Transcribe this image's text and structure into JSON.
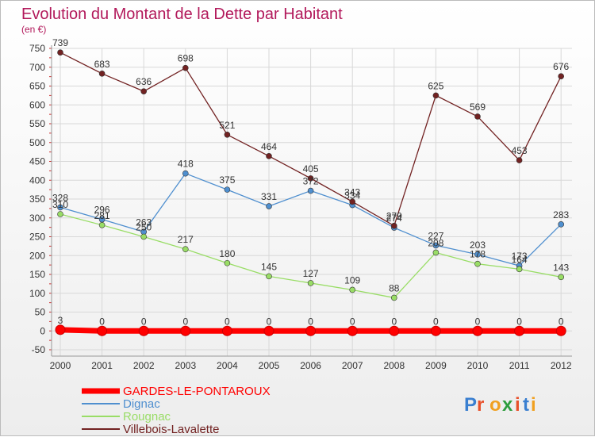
{
  "chart_data": {
    "type": "line",
    "title": "Evolution du Montant de la Dette par Habitant",
    "subtitle": "(en €)",
    "x": [
      "2000",
      "2001",
      "2002",
      "2003",
      "2004",
      "2005",
      "2006",
      "2007",
      "2008",
      "2009",
      "2010",
      "2011",
      "2012"
    ],
    "ylim": [
      -50,
      750
    ],
    "yticks": [
      -50,
      0,
      50,
      100,
      150,
      200,
      250,
      300,
      350,
      400,
      450,
      500,
      550,
      600,
      650,
      700,
      750
    ],
    "grid": true,
    "legend_position": "bottom-left",
    "series": [
      {
        "name": "GARDES-LE-PONTAROUX",
        "color": "#ff0000",
        "values": [
          3,
          0,
          0,
          0,
          0,
          0,
          0,
          0,
          0,
          0,
          0,
          0,
          0
        ]
      },
      {
        "name": "Dignac",
        "color": "#4f8fcf",
        "values": [
          328,
          296,
          263,
          418,
          375,
          331,
          372,
          334,
          274,
          227,
          203,
          173,
          283
        ]
      },
      {
        "name": "Rougnac",
        "color": "#99dd66",
        "values": [
          310,
          281,
          250,
          217,
          180,
          145,
          127,
          109,
          88,
          208,
          178,
          164,
          143
        ]
      },
      {
        "name": "Villebois-Lavalette",
        "color": "#722222",
        "values": [
          739,
          683,
          636,
          698,
          521,
          464,
          405,
          343,
          279,
          625,
          569,
          453,
          676
        ]
      }
    ]
  },
  "logo": {
    "text": "Proxiti",
    "letters": [
      "P",
      "r",
      "o",
      "x",
      "i",
      "t",
      "i"
    ],
    "colors": [
      "#3a7fd0",
      "#e8502a",
      "#f0a020",
      "#2e9e3e",
      "#e8502a",
      "#3a7fd0",
      "#f0a020"
    ]
  }
}
